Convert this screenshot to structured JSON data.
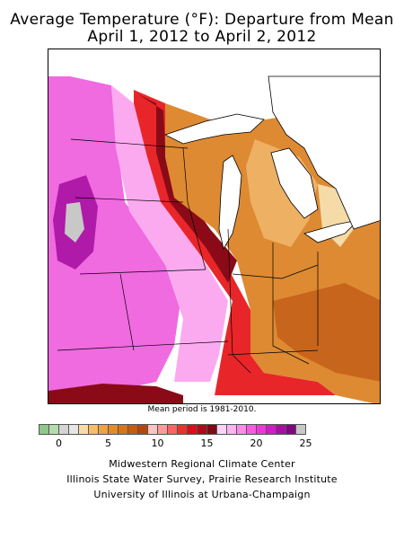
{
  "title_line1": "Average Temperature (°F): Departure from Mean",
  "title_line2": "April 1, 2012 to April 2, 2012",
  "map_note": "Mean period is 1981-2010.",
  "legend": {
    "colors": [
      "#8fc68a",
      "#b6dbaf",
      "#d4d4d4",
      "#e6e6e6",
      "#f8dca8",
      "#f3bd69",
      "#eba346",
      "#e08b2c",
      "#d5741b",
      "#c45c12",
      "#b24810",
      "#fcc3c3",
      "#fb9a9a",
      "#f76565",
      "#ee2f2f",
      "#d80e1c",
      "#a80d1a",
      "#7a0a14",
      "#ffd2f5",
      "#ffb3f0",
      "#fc8ae8",
      "#f55ce0",
      "#e93ad6",
      "#cf1dc5",
      "#a70ea1",
      "#7d0a7c",
      "#c8c8c8"
    ],
    "ticks": [
      {
        "label": "0",
        "index": 2
      },
      {
        "label": "5",
        "index": 7
      },
      {
        "label": "10",
        "index": 12
      },
      {
        "label": "15",
        "index": 17
      },
      {
        "label": "20",
        "index": 22
      },
      {
        "label": "25",
        "index": 27
      }
    ]
  },
  "credits": [
    "Midwestern Regional Climate Center",
    "Illinois State Water Survey, Prairie Research Institute",
    "University of Illinois at Urbana-Champaign"
  ]
}
